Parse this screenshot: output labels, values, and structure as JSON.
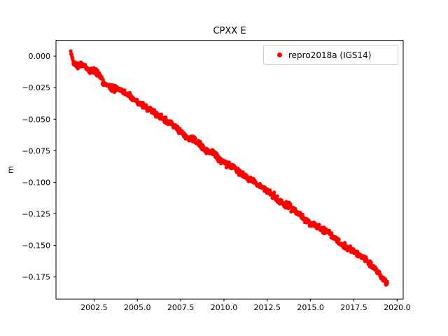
{
  "chart_data": {
    "type": "scatter",
    "title": "CPXX E",
    "xlabel": "",
    "ylabel": "m",
    "grid": false,
    "legend_position": "upper right",
    "xlim": [
      2000.3,
      2020.35
    ],
    "ylim": [
      -0.1925,
      0.0125
    ],
    "xticks": [
      2002.5,
      2005.0,
      2007.5,
      2010.0,
      2012.5,
      2015.0,
      2017.5,
      2020.0
    ],
    "xtick_labels": [
      "2002.5",
      "2005.0",
      "2007.5",
      "2010.0",
      "2012.5",
      "2015.0",
      "2017.5",
      "2020.0"
    ],
    "yticks": [
      0.0,
      -0.025,
      -0.05,
      -0.075,
      -0.1,
      -0.125,
      -0.15,
      -0.175
    ],
    "ytick_labels": [
      "0.000",
      "−0.025",
      "−0.050",
      "−0.075",
      "−",
      "−0.125",
      "−0.150",
      "−0.175"
    ],
    "ytick_labels_fixed": [
      "0.000",
      "−0.025",
      "−0.050",
      "−0.075",
      "−0.100",
      "−0.125",
      "−0.150",
      "−0.175"
    ],
    "point_interval_years": 0.02,
    "scatter_noise_m": 0.0012,
    "marker_radius_px": 2.6,
    "series": [
      {
        "name": "repro2018a (IGS14)",
        "color": "#ff0000",
        "anchors": [
          [
            2001.15,
            0.003
          ],
          [
            2001.3,
            -0.004
          ],
          [
            2001.6,
            -0.008
          ],
          [
            2001.9,
            -0.007
          ],
          [
            2002.2,
            -0.011
          ],
          [
            2002.5,
            -0.012
          ],
          [
            2002.8,
            -0.014
          ],
          [
            2003.1,
            -0.023
          ],
          [
            2003.5,
            -0.025
          ],
          [
            2003.9,
            -0.026
          ],
          [
            2004.2,
            -0.028
          ],
          [
            2004.6,
            -0.033
          ],
          [
            2005.0,
            -0.036
          ],
          [
            2005.4,
            -0.04
          ],
          [
            2005.8,
            -0.043
          ],
          [
            2006.2,
            -0.047
          ],
          [
            2006.6,
            -0.051
          ],
          [
            2007.0,
            -0.054
          ],
          [
            2007.4,
            -0.059
          ],
          [
            2007.8,
            -0.064
          ],
          [
            2008.2,
            -0.066
          ],
          [
            2008.6,
            -0.07
          ],
          [
            2009.0,
            -0.075
          ],
          [
            2009.4,
            -0.077
          ],
          [
            2009.8,
            -0.082
          ],
          [
            2010.2,
            -0.086
          ],
          [
            2010.6,
            -0.088
          ],
          [
            2011.0,
            -0.093
          ],
          [
            2011.4,
            -0.097
          ],
          [
            2011.8,
            -0.1
          ],
          [
            2012.2,
            -0.104
          ],
          [
            2012.6,
            -0.108
          ],
          [
            2013.0,
            -0.112
          ],
          [
            2013.4,
            -0.117
          ],
          [
            2013.8,
            -0.119
          ],
          [
            2014.2,
            -0.124
          ],
          [
            2014.6,
            -0.128
          ],
          [
            2015.0,
            -0.133
          ],
          [
            2015.4,
            -0.136
          ],
          [
            2015.8,
            -0.138
          ],
          [
            2016.2,
            -0.141
          ],
          [
            2016.6,
            -0.147
          ],
          [
            2017.0,
            -0.151
          ],
          [
            2017.4,
            -0.154
          ],
          [
            2017.8,
            -0.157
          ],
          [
            2018.2,
            -0.161
          ],
          [
            2018.6,
            -0.167
          ],
          [
            2019.0,
            -0.173
          ],
          [
            2019.3,
            -0.178
          ],
          [
            2019.45,
            -0.182
          ]
        ]
      }
    ]
  }
}
